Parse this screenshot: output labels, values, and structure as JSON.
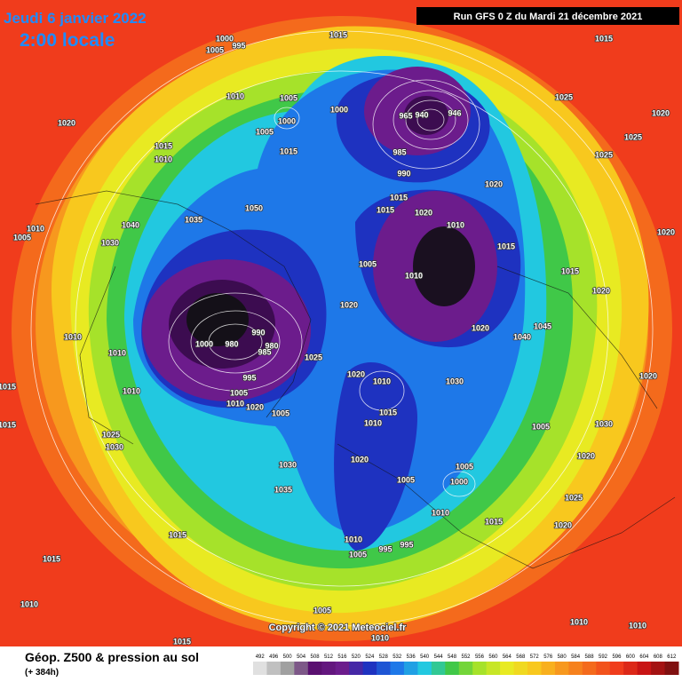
{
  "header": {
    "date": "Jeudi 6 janvier 2022",
    "time": "2:00 locale",
    "run": "Run GFS 0 Z du Mardi 21 décembre 2021"
  },
  "map": {
    "isobar_labels": [
      1000,
      1005,
      995,
      1015,
      1015,
      1010,
      1005,
      1000,
      1005,
      1020,
      1015,
      1010,
      1015,
      1000,
      1025,
      1020,
      1025,
      1025,
      1020,
      1015,
      1015,
      1020,
      1010,
      1015,
      1015,
      1020,
      1040,
      1035,
      1050,
      1030,
      1010,
      1005,
      1005,
      1010,
      1020,
      1020,
      1045,
      1040,
      1020,
      1000,
      980,
      990,
      985,
      980,
      995,
      1005,
      1010,
      1020,
      1005,
      1025,
      1010,
      1010,
      1010,
      1015,
      1015,
      1020,
      1010,
      1015,
      1010,
      1030,
      1005,
      1030,
      1020,
      1020,
      1025,
      1030,
      1020,
      1005,
      1005,
      1000,
      1030,
      1035,
      1025,
      1020,
      1010,
      1015,
      1015,
      1015,
      1010,
      1005,
      995,
      995,
      1010,
      1010,
      1010,
      1005,
      1010,
      1015,
      965,
      940,
      946,
      990,
      985
    ],
    "copyright": "Copyright © 2021 Meteociel.fr"
  },
  "legend": {
    "title": "Géop. Z500 & pression au sol",
    "lead": "(+ 384h)",
    "scale": [
      492,
      496,
      500,
      504,
      508,
      512,
      516,
      520,
      524,
      528,
      532,
      536,
      540,
      544,
      548,
      552,
      556,
      560,
      564,
      568,
      572,
      576,
      580,
      584,
      588,
      592,
      596,
      600,
      604,
      608,
      612
    ]
  }
}
